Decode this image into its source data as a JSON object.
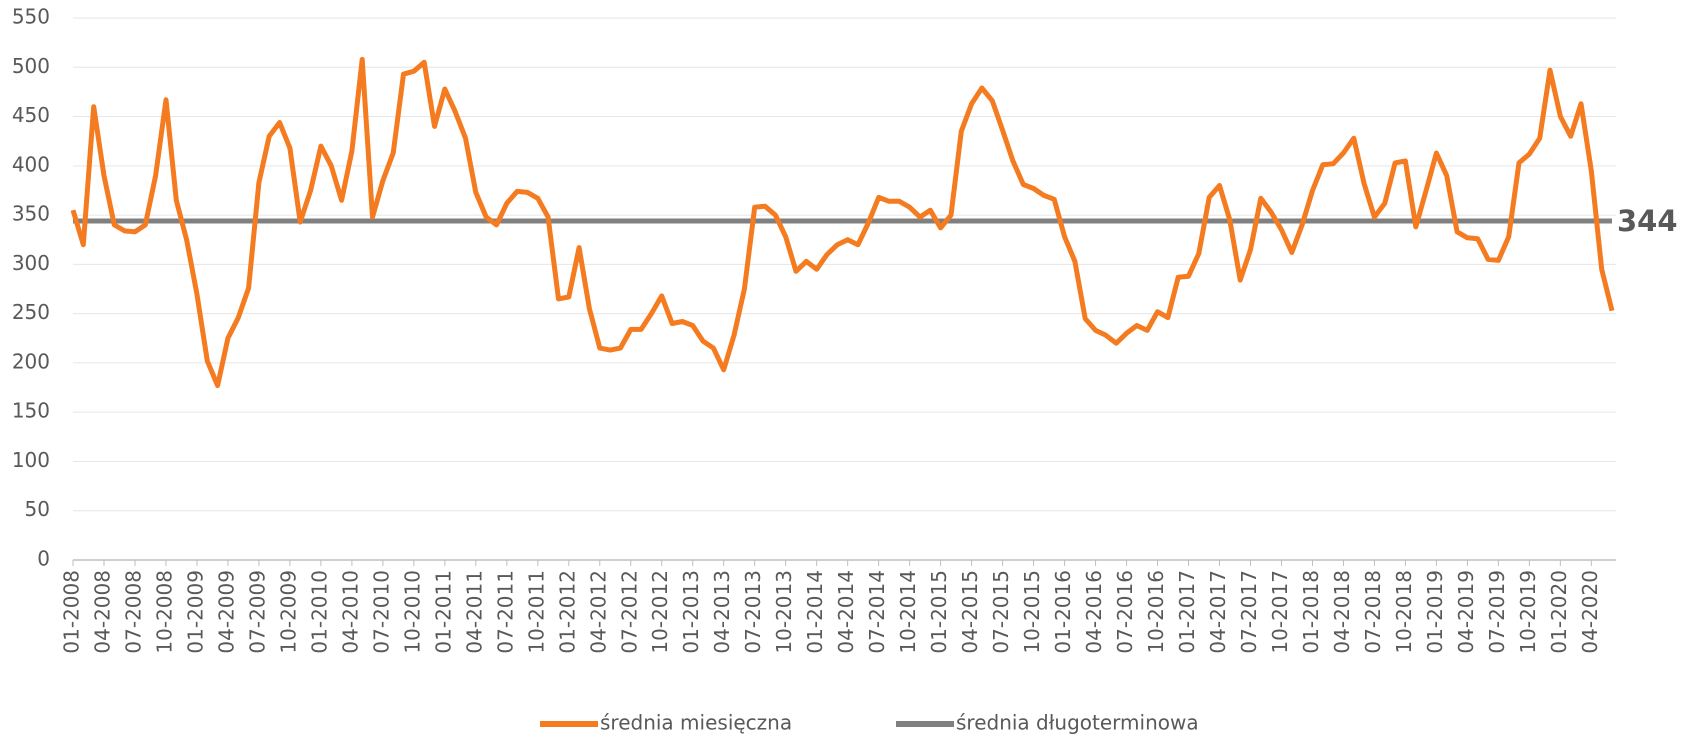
{
  "chart_data": {
    "type": "line",
    "categories": [
      "01-2008",
      null,
      null,
      "04-2008",
      null,
      null,
      "07-2008",
      null,
      null,
      "10-2008",
      null,
      null,
      "01-2009",
      null,
      null,
      "04-2009",
      null,
      null,
      "07-2009",
      null,
      null,
      "10-2009",
      null,
      null,
      "01-2010",
      null,
      null,
      "04-2010",
      null,
      null,
      "07-2010",
      null,
      null,
      "10-2010",
      null,
      null,
      "01-2011",
      null,
      null,
      "04-2011",
      null,
      null,
      "07-2011",
      null,
      null,
      "10-2011",
      null,
      null,
      "01-2012",
      null,
      null,
      "04-2012",
      null,
      null,
      "07-2012",
      null,
      null,
      "10-2012",
      null,
      null,
      "01-2013",
      null,
      null,
      "04-2013",
      null,
      null,
      "07-2013",
      null,
      null,
      "10-2013",
      null,
      null,
      "01-2014",
      null,
      null,
      "04-2014",
      null,
      null,
      "07-2014",
      null,
      null,
      "10-2014",
      null,
      null,
      "01-2015",
      null,
      null,
      "04-2015",
      null,
      null,
      "07-2015",
      null,
      null,
      "10-2015",
      null,
      null,
      "01-2016",
      null,
      null,
      "04-2016",
      null,
      null,
      "07-2016",
      null,
      null,
      "10-2016",
      null,
      null,
      "01-2017",
      null,
      null,
      "04-2017",
      null,
      null,
      "07-2017",
      null,
      null,
      "10-2017",
      null,
      null,
      "01-2018",
      null,
      null,
      "04-2018",
      null,
      null,
      "07-2018",
      null,
      null,
      "10-2018",
      null,
      null,
      "01-2019",
      null,
      null,
      "04-2019",
      null,
      null,
      "07-2019",
      null,
      null,
      "10-2019",
      null,
      null,
      "01-2020",
      null,
      null,
      "04-2020",
      null,
      null
    ],
    "series": [
      {
        "name": "średnia miesięczna",
        "color": "#f47b20",
        "values": [
          355,
          320,
          460,
          390,
          340,
          334,
          333,
          340,
          390,
          467,
          365,
          325,
          270,
          202,
          177,
          225,
          246,
          276,
          383,
          430,
          444,
          418,
          343,
          375,
          420,
          400,
          365,
          415,
          508,
          348,
          385,
          413,
          493,
          496,
          505,
          440,
          478,
          455,
          428,
          373,
          348,
          340,
          362,
          374,
          373,
          367,
          348,
          265,
          267,
          317,
          255,
          215,
          213,
          215,
          234,
          234,
          250,
          268,
          240,
          242,
          238,
          222,
          215,
          193,
          228,
          275,
          358,
          359,
          350,
          328,
          293,
          303,
          295,
          310,
          320,
          325,
          320,
          342,
          368,
          364,
          364,
          358,
          348,
          355,
          337,
          350,
          435,
          463,
          479,
          466,
          436,
          405,
          381,
          377,
          370,
          366,
          328,
          303,
          245,
          233,
          228,
          220,
          230,
          238,
          233,
          252,
          246,
          287,
          288,
          311,
          368,
          380,
          345,
          284,
          315,
          367,
          353,
          335,
          312,
          340,
          375,
          401,
          402,
          413,
          428,
          382,
          348,
          362,
          403,
          405,
          338,
          375,
          413,
          390,
          333,
          327,
          326,
          305,
          304,
          328,
          403,
          412,
          428,
          497,
          450,
          430,
          463,
          395,
          295,
          253
        ]
      }
    ],
    "reference_line": {
      "name": "średnia długoterminowa",
      "value": 344,
      "color": "#808080"
    },
    "ylim": [
      0,
      550
    ],
    "yticks": [
      0,
      50,
      100,
      150,
      200,
      250,
      300,
      350,
      400,
      450,
      500,
      550
    ],
    "grid": true
  }
}
